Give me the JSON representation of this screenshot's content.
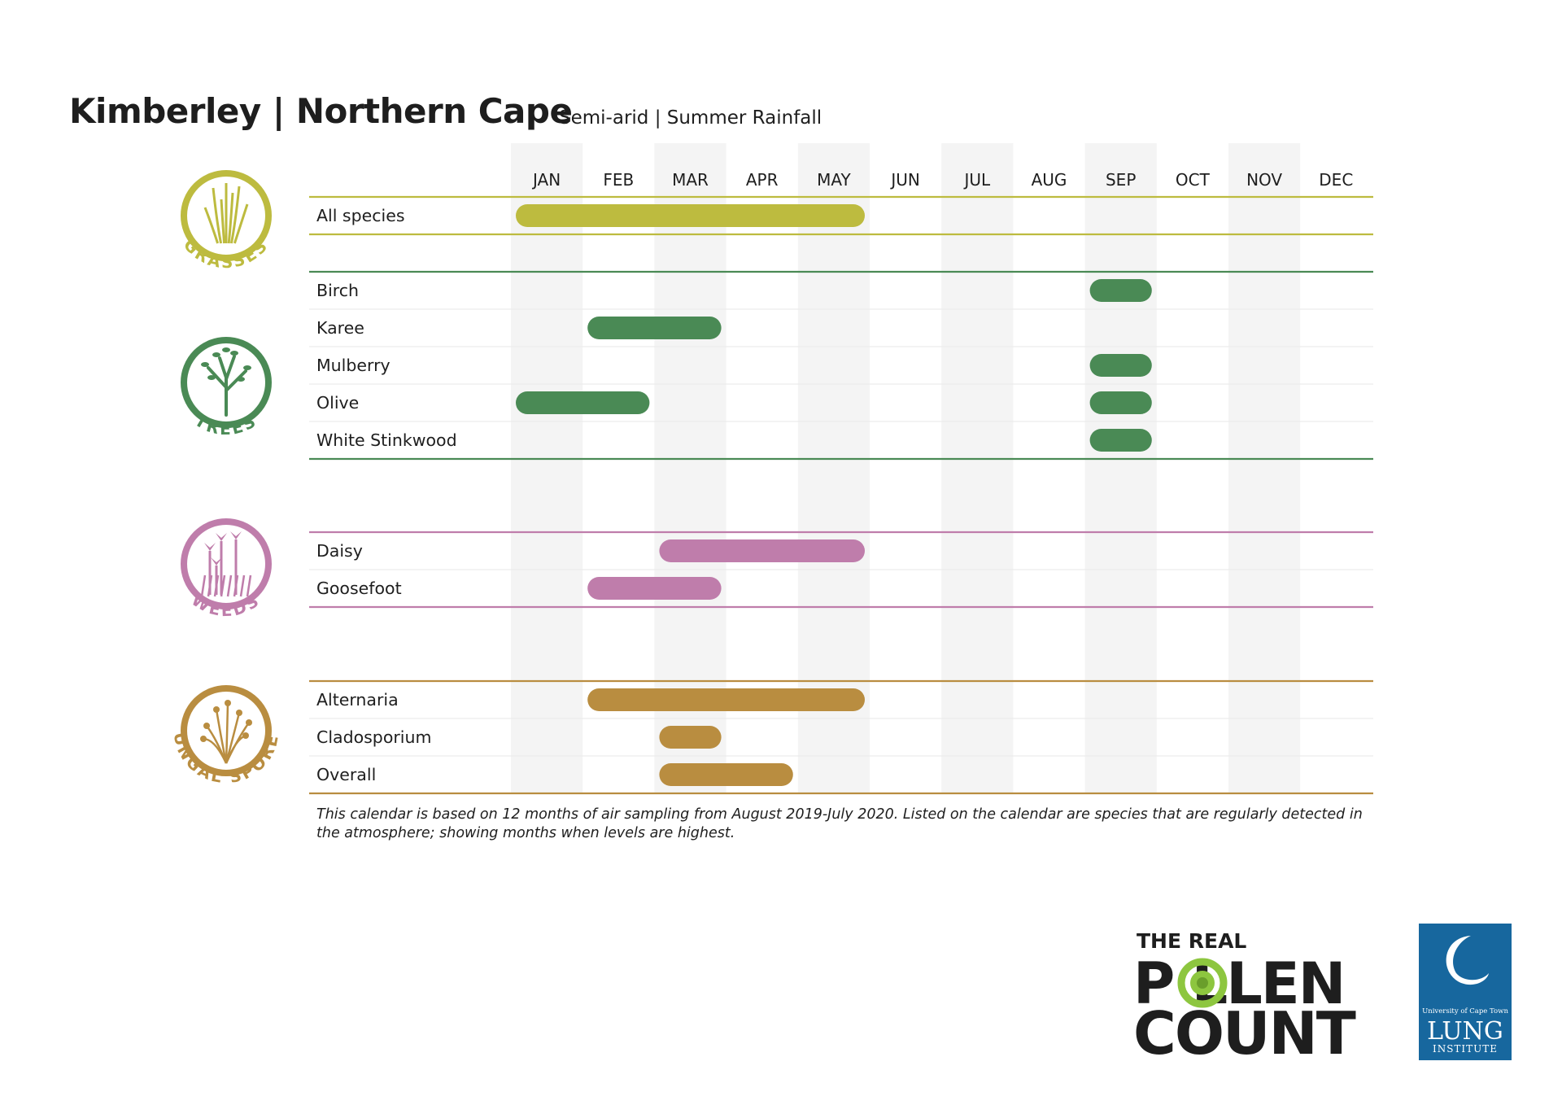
{
  "header": {
    "title": "Kimberley | Northern Cape",
    "subtitle": "Semi-arid | Summer Rainfall"
  },
  "footnote": "This calendar is based on 12 months of air sampling from August 2019-July 2020. Listed on the calendar are species that are regularly detected in the atmosphere; showing months when levels are highest.",
  "logos": {
    "pollen_line1": "THE REAL",
    "pollen_line2": "P LLEN",
    "pollen_line3": "COUNT",
    "uct_line1": "University of Cape Town",
    "uct_line2": "LUNG",
    "uct_line3": "INSTITUTE"
  },
  "chart_data": {
    "type": "gantt",
    "months": [
      "JAN",
      "FEB",
      "MAR",
      "APR",
      "MAY",
      "JUN",
      "JUL",
      "AUG",
      "SEP",
      "OCT",
      "NOV",
      "DEC"
    ],
    "groups": [
      {
        "name": "GRASSES",
        "color": "#bdbb3f",
        "icon": "grass-icon",
        "items": [
          {
            "label": "All species",
            "start": 1,
            "end": 5
          }
        ]
      },
      {
        "name": "TREES",
        "color": "#4a8a55",
        "icon": "tree-icon",
        "items": [
          {
            "label": "Birch",
            "start": 9,
            "end": 9
          },
          {
            "label": "Karee",
            "start": 2,
            "end": 3
          },
          {
            "label": "Mulberry",
            "start": 9,
            "end": 9
          },
          {
            "label": "Olive",
            "start": 1,
            "end": 2,
            "start2": 9,
            "end2": 9
          },
          {
            "label": "White Stinkwood",
            "start": 9,
            "end": 9
          }
        ]
      },
      {
        "name": "WEEDS",
        "color": "#bf7dab",
        "icon": "flower-icon",
        "items": [
          {
            "label": "Daisy",
            "start": 3,
            "end": 5
          },
          {
            "label": "Goosefoot",
            "start": 2,
            "end": 3
          }
        ]
      },
      {
        "name": "FUNGAL SPORES",
        "color": "#b98d40",
        "icon": "spore-icon",
        "items": [
          {
            "label": "Alternaria",
            "start": 2,
            "end": 5
          },
          {
            "label": "Cladosporium",
            "start": 3,
            "end": 3
          },
          {
            "label": "Overall",
            "start": 3,
            "end": 4
          }
        ]
      }
    ]
  }
}
